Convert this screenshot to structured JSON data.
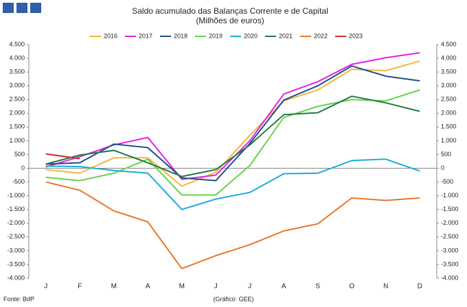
{
  "chart_data": {
    "type": "line",
    "title": "Saldo acumulado das Balanças Corrente e de Capital",
    "subtitle": "(Milhões de euros)",
    "source": "Fonte: BdP",
    "credit": "(Gráfico: GEE)",
    "categories": [
      "J",
      "F",
      "M",
      "A",
      "M",
      "J",
      "J",
      "A",
      "S",
      "O",
      "N",
      "D"
    ],
    "series": [
      {
        "name": "2016",
        "color": "#f0b83c",
        "values": [
          -50,
          -180,
          380,
          380,
          -650,
          -150,
          1200,
          2450,
          2850,
          3600,
          3550,
          3900
        ]
      },
      {
        "name": "2017",
        "color": "#e61ee6",
        "values": [
          50,
          420,
          850,
          1120,
          -400,
          -250,
          1000,
          2700,
          3150,
          3780,
          4020,
          4200
        ]
      },
      {
        "name": "2018",
        "color": "#1f4e8c",
        "values": [
          150,
          200,
          880,
          750,
          -350,
          -450,
          900,
          2480,
          3000,
          3720,
          3350,
          3180
        ]
      },
      {
        "name": "2019",
        "color": "#66d24a",
        "values": [
          -330,
          -450,
          -180,
          330,
          -970,
          -970,
          100,
          1850,
          2250,
          2500,
          2450,
          2850
        ]
      },
      {
        "name": "2020",
        "color": "#1eaadc",
        "values": [
          80,
          60,
          -80,
          -180,
          -1500,
          -1120,
          -880,
          -200,
          -180,
          280,
          330,
          -100
        ]
      },
      {
        "name": "2021",
        "color": "#1e7a46",
        "values": [
          150,
          480,
          650,
          200,
          -300,
          -50,
          850,
          1950,
          2020,
          2620,
          2380,
          2070
        ]
      },
      {
        "name": "2022",
        "color": "#e8762a",
        "values": [
          -500,
          -800,
          -1550,
          -1950,
          -3650,
          -3180,
          -2780,
          -2280,
          -2020,
          -1080,
          -1170,
          -1080
        ]
      },
      {
        "name": "2023",
        "color": "#d22828",
        "values": [
          520,
          350,
          null,
          null,
          null,
          null,
          null,
          null,
          null,
          null,
          null,
          null
        ]
      }
    ],
    "ylim": [
      -4000,
      4500
    ],
    "yticks": [
      {
        "value": -4000,
        "label": "-4.000"
      },
      {
        "value": -3500,
        "label": "-3.500"
      },
      {
        "value": -3000,
        "label": "-3.000"
      },
      {
        "value": -2500,
        "label": "-2.500"
      },
      {
        "value": -2000,
        "label": "-2.000"
      },
      {
        "value": -1500,
        "label": "-1.500"
      },
      {
        "value": -1000,
        "label": "-1.000"
      },
      -500,
      0,
      500,
      {
        "value": 1000,
        "label": "1.000"
      },
      {
        "value": 1500,
        "label": "1.500"
      },
      {
        "value": 2000,
        "label": "2.000"
      },
      {
        "value": 2500,
        "label": "2.500"
      },
      {
        "value": 3000,
        "label": "3.000"
      },
      {
        "value": 3500,
        "label": "3.500"
      },
      {
        "value": 4000,
        "label": "4.000"
      },
      {
        "value": 4500,
        "label": "4.500"
      }
    ],
    "y2lim": [
      -4000,
      4500
    ],
    "y2ticks": [
      {
        "value": -4000,
        "label": "-4.000"
      },
      {
        "value": -3500,
        "label": "-3.500"
      },
      {
        "value": -3000,
        "label": "-3.000"
      },
      {
        "value": -2500,
        "label": "-2.500"
      },
      {
        "value": -2000,
        "label": "-2.000"
      },
      {
        "value": -1500,
        "label": "-1.500"
      },
      {
        "value": -1000,
        "label": "-1.000"
      },
      -500,
      0,
      500,
      {
        "value": 1000,
        "label": "1.000"
      },
      {
        "value": 1500,
        "label": "1.500"
      },
      {
        "value": 2000,
        "label": "2.000"
      },
      {
        "value": 2500,
        "label": "2.500"
      },
      {
        "value": 3000,
        "label": "3.000"
      },
      {
        "value": 3500,
        "label": "3.500"
      },
      {
        "value": 4000,
        "label": "4.000"
      },
      {
        "value": 4500,
        "label": "4.500"
      }
    ],
    "grid": false
  }
}
